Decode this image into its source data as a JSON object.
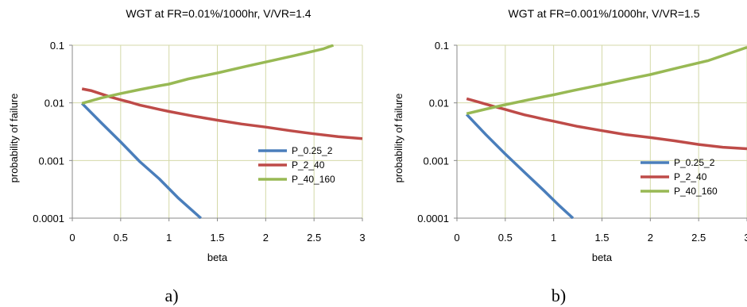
{
  "chart_data": [
    {
      "type": "line",
      "title": "WGT at FR=0.01%/1000hr, V/VR=1.4",
      "xlabel": "beta",
      "ylabel": "probability of failure",
      "xlim": [
        0,
        3
      ],
      "ylim": [
        0.0001,
        0.1
      ],
      "yscale": "log",
      "xticks": [
        "0",
        "0.5",
        "1",
        "1.5",
        "2",
        "2.5",
        "3"
      ],
      "yticks": [
        "0.0001",
        "0.001",
        "0.01",
        "0.1"
      ],
      "grid": true,
      "legend_position": "center-right",
      "sublabel": "a)",
      "series": [
        {
          "name": "P_0.25_2",
          "color": "#4a7ebb",
          "x": [
            0.1,
            0.3,
            0.5,
            0.7,
            0.9,
            1.1,
            1.33
          ],
          "y": [
            0.0098,
            0.0045,
            0.0021,
            0.00095,
            0.00048,
            0.00022,
            0.0001
          ]
        },
        {
          "name": "P_2_40",
          "color": "#be4b48",
          "x": [
            0.1,
            0.2,
            0.3,
            0.4,
            0.5,
            0.6,
            0.7,
            0.8,
            0.9,
            1.0,
            1.25,
            1.5,
            1.75,
            2.0,
            2.25,
            2.5,
            2.75,
            3.0
          ],
          "y": [
            0.0175,
            0.0162,
            0.0143,
            0.0126,
            0.0113,
            0.0102,
            0.0091,
            0.0084,
            0.0077,
            0.0071,
            0.0059,
            0.005,
            0.0043,
            0.0038,
            0.0033,
            0.0029,
            0.0026,
            0.0024
          ]
        },
        {
          "name": "P_40_160",
          "color": "#98b954",
          "x": [
            0.1,
            0.3,
            0.5,
            0.7,
            0.9,
            1.0,
            1.2,
            1.5,
            1.8,
            2.0,
            2.3,
            2.6,
            2.7
          ],
          "y": [
            0.0098,
            0.0122,
            0.0145,
            0.017,
            0.0198,
            0.0212,
            0.026,
            0.033,
            0.043,
            0.051,
            0.066,
            0.087,
            0.1
          ]
        }
      ]
    },
    {
      "type": "line",
      "title": "WGT at FR=0.001%/1000hr, V/VR=1.5",
      "xlabel": "beta",
      "ylabel": "probability of failure",
      "xlim": [
        0,
        3
      ],
      "ylim": [
        0.0001,
        0.1
      ],
      "yscale": "log",
      "xticks": [
        "0",
        "0.5",
        "1",
        "1.5",
        "2",
        "2.5",
        "3"
      ],
      "yticks": [
        "0.0001",
        "0.001",
        "0.01",
        "0.1"
      ],
      "grid": true,
      "legend_position": "center-right",
      "sublabel": "b)",
      "series": [
        {
          "name": "P_0.25_2",
          "color": "#4a7ebb",
          "x": [
            0.1,
            0.3,
            0.5,
            0.7,
            0.9,
            1.05,
            1.2
          ],
          "y": [
            0.0063,
            0.0028,
            0.0013,
            0.00062,
            0.0003,
            0.00017,
            0.0001
          ]
        },
        {
          "name": "P_2_40",
          "color": "#be4b48",
          "x": [
            0.1,
            0.2,
            0.3,
            0.4,
            0.5,
            0.6,
            0.7,
            0.8,
            0.9,
            1.0,
            1.25,
            1.5,
            1.75,
            2.0,
            2.25,
            2.5,
            2.75,
            3.0
          ],
          "y": [
            0.0118,
            0.0106,
            0.0095,
            0.0085,
            0.0077,
            0.0069,
            0.0062,
            0.0057,
            0.0052,
            0.0048,
            0.0039,
            0.0033,
            0.0028,
            0.0025,
            0.0022,
            0.0019,
            0.0017,
            0.0016
          ]
        },
        {
          "name": "P_40_160",
          "color": "#98b954",
          "x": [
            0.1,
            0.3,
            0.5,
            0.7,
            0.9,
            1.0,
            1.2,
            1.5,
            1.8,
            2.0,
            2.3,
            2.6,
            3.0
          ],
          "y": [
            0.0065,
            0.0078,
            0.0093,
            0.0109,
            0.0128,
            0.0138,
            0.0163,
            0.0207,
            0.0265,
            0.031,
            0.041,
            0.054,
            0.092
          ]
        }
      ]
    }
  ]
}
